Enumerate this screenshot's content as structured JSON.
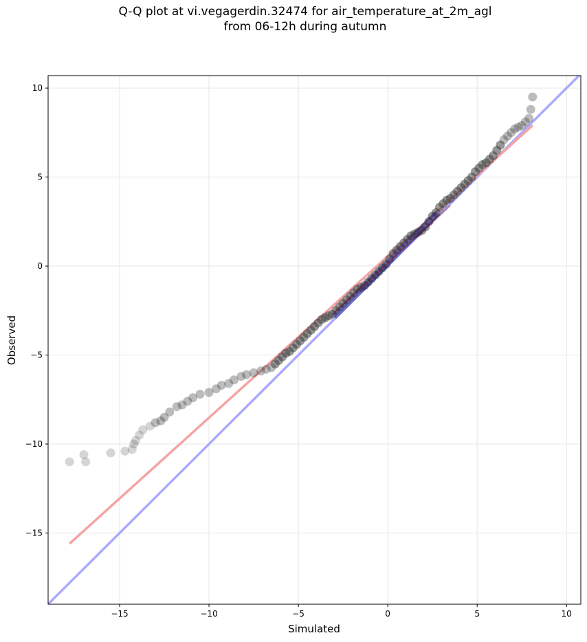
{
  "title": {
    "line1": "Q-Q plot at vi.vegagerdin.32474 for air_temperature_at_2m_agl",
    "line2": "from 06-12h during autumn"
  },
  "chart_data": {
    "type": "scatter",
    "xlabel": "Simulated",
    "ylabel": "Observed",
    "xlim": [
      -19,
      10.8
    ],
    "ylim": [
      -19,
      10.7
    ],
    "xticks": [
      -15,
      -10,
      -5,
      0,
      5,
      10
    ],
    "yticks": [
      -15,
      -10,
      -5,
      0,
      5,
      10
    ],
    "xtick_labels": [
      "−15",
      "−10",
      "−5",
      "0",
      "5",
      "10"
    ],
    "ytick_labels": [
      "−15",
      "−10",
      "−5",
      "0",
      "5",
      "10"
    ],
    "grid": true,
    "colors": {
      "points": "#404040",
      "identity_line": "#aaaaff",
      "fit_line": "#f5a3a3",
      "center_points": "#000080",
      "center_line": "#8b0000"
    },
    "series": [
      {
        "kind": "points",
        "x": [
          -17.8,
          -16.9,
          -17.0,
          -15.5,
          -14.7,
          -14.3,
          -14.2,
          -14.1,
          -13.9,
          -13.7,
          -13.3,
          -13.0,
          -12.7,
          -12.5,
          -12.2,
          -11.8,
          -11.5,
          -11.2,
          -10.9,
          -10.5,
          -10.0,
          -9.6,
          -9.3,
          -8.9,
          -8.6,
          -8.2,
          -7.9,
          -7.5,
          -7.1,
          -6.8,
          -6.5,
          -6.3,
          -6.1,
          -5.9,
          -5.7,
          -5.5,
          -5.3,
          -5.1,
          -4.9,
          -4.7,
          -4.5,
          -4.3,
          -4.1,
          -3.9,
          -3.7,
          -3.5,
          -3.3,
          -3.1,
          -2.9,
          -2.7,
          -2.5,
          -2.3,
          -2.1,
          -1.9,
          -1.7,
          -1.5,
          -1.3,
          -1.1,
          -0.9,
          -0.7,
          -0.5,
          -0.3,
          -0.1,
          0.1,
          0.3,
          0.5,
          0.7,
          0.9,
          1.1,
          1.3,
          1.5,
          1.7,
          1.9,
          2.1,
          2.3,
          2.5,
          2.7,
          2.9,
          3.1,
          3.3,
          3.5,
          3.7,
          3.9,
          4.1,
          4.3,
          4.5,
          4.7,
          4.9,
          5.1,
          5.3,
          5.5,
          5.7,
          5.9,
          6.1,
          6.3,
          6.5,
          6.7,
          6.9,
          7.1,
          7.3,
          7.5,
          7.7,
          7.9,
          8.0,
          8.1
        ],
        "y": [
          -11.0,
          -11.0,
          -10.6,
          -10.5,
          -10.4,
          -10.3,
          -10.0,
          -9.8,
          -9.5,
          -9.2,
          -9.0,
          -8.8,
          -8.7,
          -8.5,
          -8.2,
          -7.9,
          -7.8,
          -7.6,
          -7.4,
          -7.2,
          -7.1,
          -6.9,
          -6.7,
          -6.6,
          -6.4,
          -6.2,
          -6.1,
          -6.0,
          -5.9,
          -5.8,
          -5.7,
          -5.5,
          -5.3,
          -5.1,
          -4.9,
          -4.8,
          -4.6,
          -4.4,
          -4.2,
          -4.0,
          -3.8,
          -3.6,
          -3.4,
          -3.2,
          -3.0,
          -2.9,
          -2.8,
          -2.7,
          -2.5,
          -2.3,
          -2.1,
          -1.9,
          -1.7,
          -1.5,
          -1.3,
          -1.2,
          -1.1,
          -0.9,
          -0.7,
          -0.5,
          -0.3,
          -0.1,
          0.1,
          0.4,
          0.7,
          0.9,
          1.1,
          1.3,
          1.5,
          1.7,
          1.8,
          1.9,
          2.0,
          2.2,
          2.5,
          2.8,
          3.0,
          3.3,
          3.5,
          3.7,
          3.8,
          4.0,
          4.2,
          4.4,
          4.6,
          4.8,
          5.0,
          5.3,
          5.5,
          5.7,
          5.8,
          6.0,
          6.2,
          6.5,
          6.8,
          7.1,
          7.3,
          7.5,
          7.7,
          7.8,
          7.9,
          8.1,
          8.3,
          8.8,
          9.5
        ]
      },
      {
        "kind": "identity_line",
        "x": [
          -19,
          10.8
        ],
        "y": [
          -19,
          10.8
        ]
      },
      {
        "kind": "fit_line",
        "x": [
          -17.8,
          8.1
        ],
        "y": [
          -15.6,
          7.9
        ]
      }
    ]
  }
}
